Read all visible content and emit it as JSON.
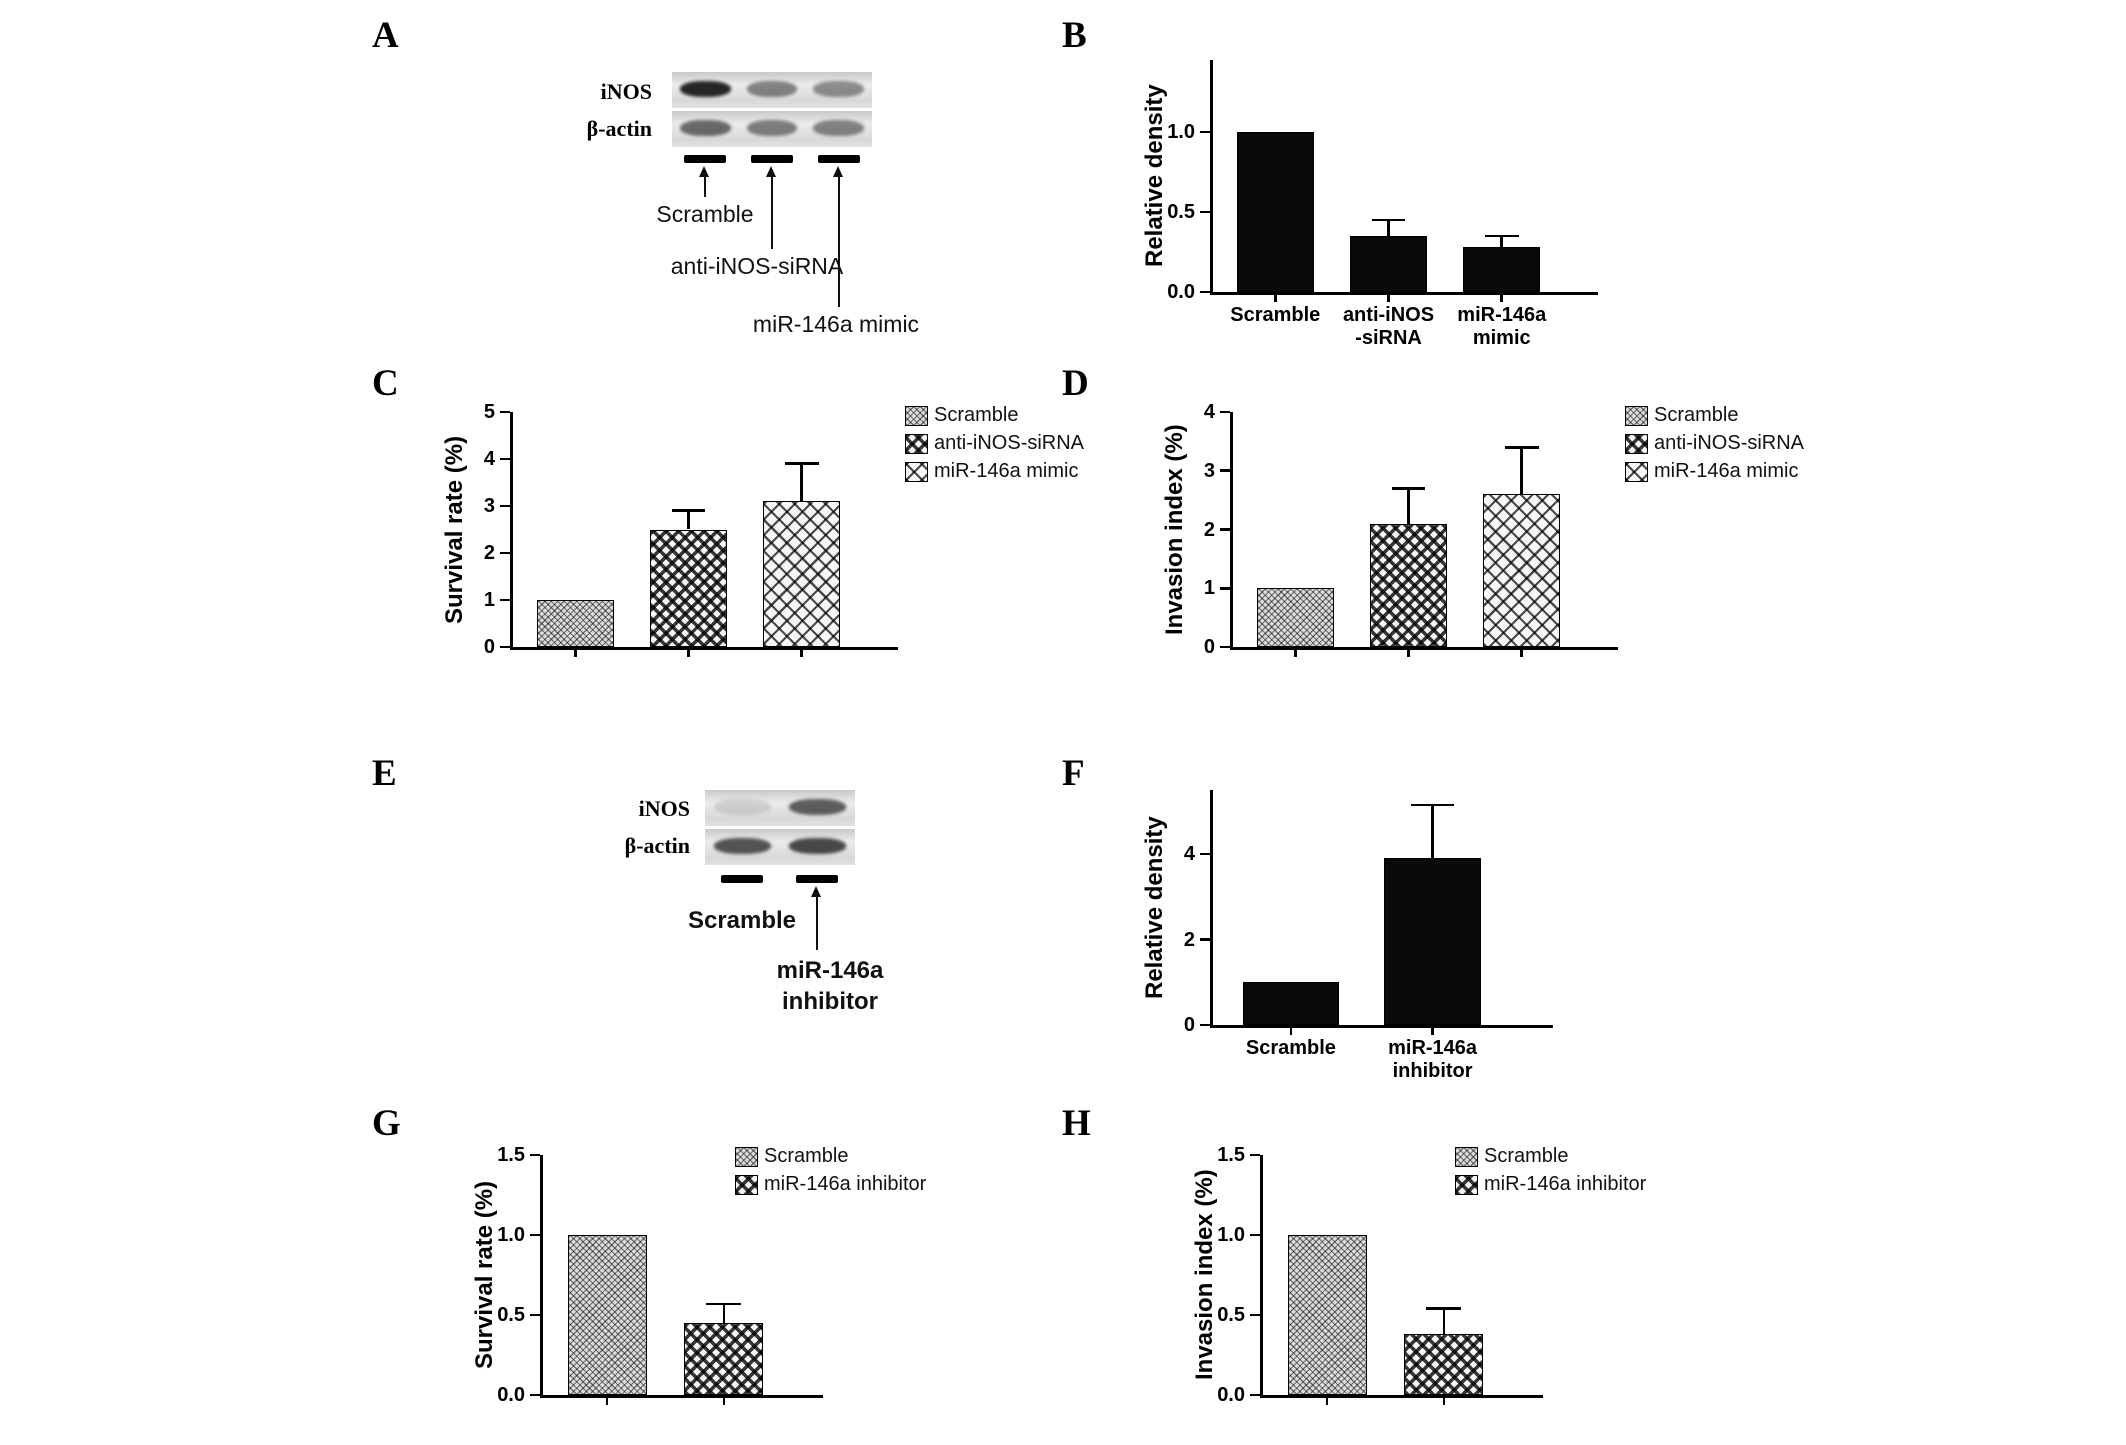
{
  "figure": {
    "background": "#ffffff",
    "ink": "#000000"
  },
  "panels": {
    "A": {
      "label": "A",
      "blot": {
        "row_labels": [
          "iNOS",
          "β-actin"
        ],
        "rows": [
          [
            0.95,
            0.5,
            0.45
          ],
          [
            0.62,
            0.52,
            0.5
          ]
        ],
        "lane_labels": [
          "Scramble",
          "anti-iNOS-siRNA",
          "miR-146a mimic"
        ]
      }
    },
    "B": {
      "label": "B"
    },
    "C": {
      "label": "C"
    },
    "D": {
      "label": "D"
    },
    "E": {
      "label": "E",
      "blot": {
        "row_labels": [
          "iNOS",
          "β-actin"
        ],
        "rows": [
          [
            0.12,
            0.68
          ],
          [
            0.72,
            0.78
          ]
        ],
        "lane_labels": [
          "Scramble",
          "miR-146a\ninhibitor"
        ]
      }
    },
    "F": {
      "label": "F"
    },
    "G": {
      "label": "G"
    },
    "H": {
      "label": "H"
    }
  },
  "chart_data": [
    {
      "id": "B",
      "type": "bar",
      "title": "",
      "ylabel": "Relative density",
      "categories": [
        "Scramble",
        "anti-iNOS\n-siRNA",
        "miR-146a\nmimic"
      ],
      "values": [
        1.0,
        0.35,
        0.28
      ],
      "errors": [
        0,
        0.1,
        0.07
      ],
      "ylim": [
        0,
        1.45
      ],
      "yticks": [
        0,
        0.5,
        1.0
      ],
      "ytick_labels": [
        "0.0",
        "0.5",
        "1.0"
      ],
      "patterns": [
        "solid",
        "solid",
        "solid"
      ],
      "show_xlabels": true,
      "grid": false,
      "legend": null
    },
    {
      "id": "C",
      "type": "bar",
      "title": "",
      "ylabel": "Survival rate (%)",
      "categories": [
        "Scramble",
        "anti-iNOS-siRNA",
        "miR-146a mimic"
      ],
      "values": [
        1.0,
        2.5,
        3.1
      ],
      "errors": [
        0,
        0.4,
        0.8
      ],
      "ylim": [
        0,
        5
      ],
      "yticks": [
        0,
        1,
        2,
        3,
        4,
        5
      ],
      "ytick_labels": [
        "0",
        "1",
        "2",
        "3",
        "4",
        "5"
      ],
      "patterns": [
        "cross-fine",
        "check",
        "diamond"
      ],
      "show_xlabels": false,
      "grid": false,
      "legend": [
        {
          "label": "Scramble",
          "pattern": "cross-fine"
        },
        {
          "label": "anti-iNOS-siRNA",
          "pattern": "check"
        },
        {
          "label": "miR-146a mimic",
          "pattern": "diamond"
        }
      ],
      "legend_pos": {
        "x": 470,
        "y": 12
      }
    },
    {
      "id": "D",
      "type": "bar",
      "title": "",
      "ylabel": "Invasion index (%)",
      "categories": [
        "Scramble",
        "anti-iNOS-siRNA",
        "miR-146a mimic"
      ],
      "values": [
        1.0,
        2.1,
        2.6
      ],
      "errors": [
        0,
        0.6,
        0.8
      ],
      "ylim": [
        0,
        4
      ],
      "yticks": [
        0,
        1,
        2,
        3,
        4
      ],
      "ytick_labels": [
        "0",
        "1",
        "2",
        "3",
        "4"
      ],
      "patterns": [
        "cross-fine",
        "check",
        "diamond"
      ],
      "show_xlabels": false,
      "grid": false,
      "legend": [
        {
          "label": "Scramble",
          "pattern": "cross-fine"
        },
        {
          "label": "anti-iNOS-siRNA",
          "pattern": "check"
        },
        {
          "label": "miR-146a mimic",
          "pattern": "diamond"
        }
      ],
      "legend_pos": {
        "x": 470,
        "y": 12
      }
    },
    {
      "id": "F",
      "type": "bar",
      "title": "",
      "ylabel": "Relative density",
      "categories": [
        "Scramble",
        "miR-146a\ninhibitor"
      ],
      "values": [
        1.0,
        3.9
      ],
      "errors": [
        0,
        1.25
      ],
      "ylim": [
        0,
        5.5
      ],
      "yticks": [
        0,
        2,
        4
      ],
      "ytick_labels": [
        "0",
        "2",
        "4"
      ],
      "patterns": [
        "solid",
        "solid"
      ],
      "show_xlabels": true,
      "grid": false,
      "legend": null
    },
    {
      "id": "G",
      "type": "bar",
      "title": "",
      "ylabel": "Survival rate (%)",
      "categories": [
        "Scramble",
        "miR-146a inhibitor"
      ],
      "values": [
        1.0,
        0.45
      ],
      "errors": [
        0,
        0.12
      ],
      "ylim": [
        0,
        1.5
      ],
      "yticks": [
        0,
        0.5,
        1.0,
        1.5
      ],
      "ytick_labels": [
        "0.0",
        "0.5",
        "1.0",
        "1.5"
      ],
      "patterns": [
        "cross-fine",
        "check"
      ],
      "show_xlabels": false,
      "grid": false,
      "legend": [
        {
          "label": "Scramble",
          "pattern": "cross-fine"
        },
        {
          "label": "miR-146a inhibitor",
          "pattern": "check"
        }
      ],
      "legend_pos": {
        "x": 300,
        "y": 20
      }
    },
    {
      "id": "H",
      "type": "bar",
      "title": "",
      "ylabel": "Invasion index (%)",
      "categories": [
        "Scramble",
        "miR-146a inhibitor"
      ],
      "values": [
        1.0,
        0.38
      ],
      "errors": [
        0,
        0.16
      ],
      "ylim": [
        0,
        1.5
      ],
      "yticks": [
        0,
        0.5,
        1.0,
        1.5
      ],
      "ytick_labels": [
        "0.0",
        "0.5",
        "1.0",
        "1.5"
      ],
      "patterns": [
        "cross-fine",
        "check"
      ],
      "show_xlabels": false,
      "grid": false,
      "legend": [
        {
          "label": "Scramble",
          "pattern": "cross-fine"
        },
        {
          "label": "miR-146a inhibitor",
          "pattern": "check"
        }
      ],
      "legend_pos": {
        "x": 300,
        "y": 20
      }
    }
  ]
}
